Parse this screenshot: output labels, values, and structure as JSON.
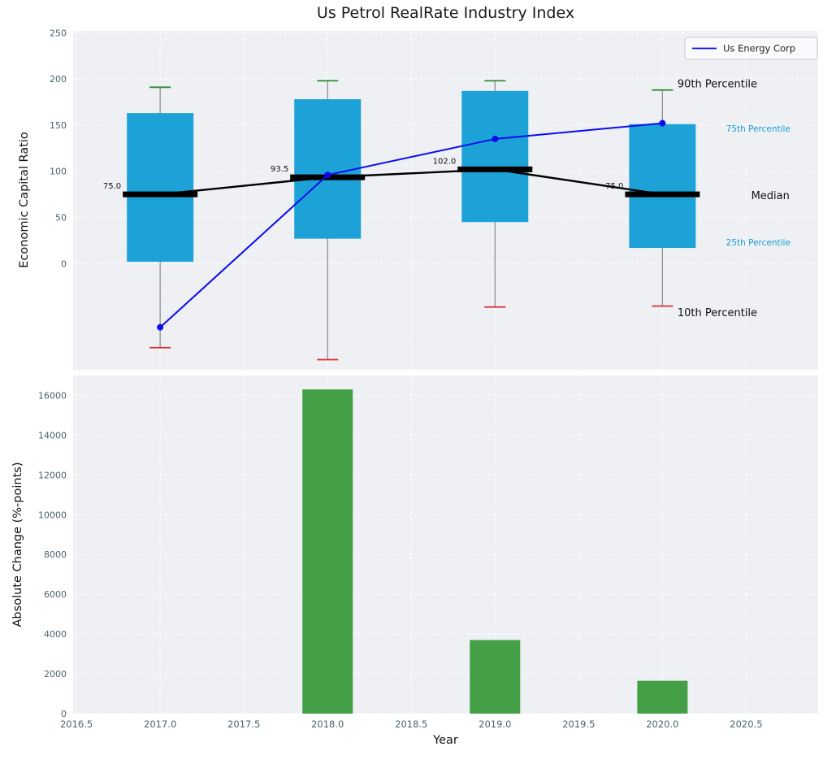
{
  "title": "Us Petrol RealRate Industry Index",
  "chart_data": [
    {
      "type": "box",
      "name": "economic-capital-ratio-percentiles",
      "ylabel": "Economic Capital Ratio",
      "ylim": [
        -115,
        252
      ],
      "yticks": [
        0,
        50,
        100,
        150,
        200,
        250
      ],
      "xlim": [
        2016.48,
        2020.93
      ],
      "grid": true,
      "categories": [
        2017,
        2018,
        2019,
        2020
      ],
      "boxes": {
        "p90": [
          191,
          198,
          198,
          188
        ],
        "p75": [
          163,
          178,
          187,
          151
        ],
        "median": [
          75.0,
          93.5,
          102.0,
          75.0
        ],
        "p25": [
          2,
          27,
          45,
          17
        ],
        "p10": [
          -91,
          -104,
          -47,
          -46
        ]
      },
      "median_labels": [
        "75.0",
        "93.5",
        "102.0",
        "75.0"
      ],
      "series": [
        {
          "name": "Us Energy Corp",
          "values": [
            -69,
            96,
            135,
            152
          ],
          "color": "#0b0bee"
        }
      ],
      "legend": {
        "label": "Us Energy Corp",
        "position": "upper right"
      },
      "annotations": [
        {
          "text": "90th Percentile",
          "x": 2020.09,
          "y": 195,
          "color": "#111111",
          "size": 13
        },
        {
          "text": "75th Percentile",
          "x": 2020.38,
          "y": 146,
          "color": "#189fd4",
          "size": 10.5
        },
        {
          "text": "Median",
          "x": 2020.53,
          "y": 74,
          "color": "#111111",
          "size": 13
        },
        {
          "text": "25th Percentile",
          "x": 2020.38,
          "y": 23,
          "color": "#189fd4",
          "size": 10.5
        },
        {
          "text": "10th Percentile",
          "x": 2020.09,
          "y": -53,
          "color": "#111111",
          "size": 13
        }
      ],
      "colors": {
        "background": "#eef0f4",
        "grid": "#ffffff",
        "box": "#1da2d8",
        "median": "#000000",
        "whisker": "#8f8f8f",
        "cap_top": "#2b8a2b",
        "cap_bottom": "#dd2c2c",
        "tick": "#4c626d"
      }
    },
    {
      "type": "bar",
      "name": "absolute-change",
      "xlabel": "Year",
      "ylabel": "Absolute Change (%-points)",
      "ylim": [
        0,
        17000
      ],
      "yticks": [
        0,
        2000,
        4000,
        6000,
        8000,
        10000,
        12000,
        14000,
        16000
      ],
      "xticks": [
        "2016.5",
        "2017.0",
        "2017.5",
        "2018.0",
        "2018.5",
        "2019.0",
        "2019.5",
        "2020.0",
        "2020.5"
      ],
      "xlim": [
        2016.48,
        2020.93
      ],
      "grid": true,
      "categories": [
        2017,
        2018,
        2019,
        2020
      ],
      "values": [
        0,
        16300,
        3700,
        1650
      ],
      "colors": {
        "background": "#eef0f4",
        "grid": "#ffffff",
        "bar": "#43a047",
        "tick": "#4c626d"
      }
    }
  ]
}
